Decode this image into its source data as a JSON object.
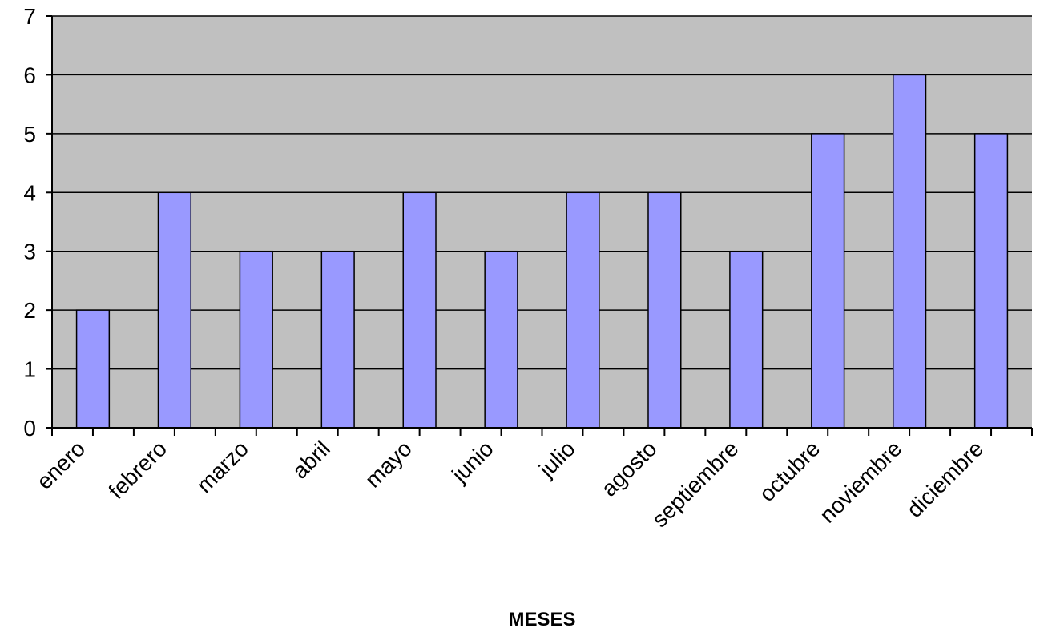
{
  "chart_data": {
    "type": "bar",
    "categories": [
      "enero",
      "febrero",
      "marzo",
      "abril",
      "mayo",
      "junio",
      "julio",
      "agosto",
      "septiembre",
      "octubre",
      "noviembre",
      "diciembre"
    ],
    "values": [
      2,
      4,
      3,
      3,
      4,
      3,
      4,
      4,
      3,
      5,
      6,
      5
    ],
    "title": "",
    "xlabel": "MESES",
    "ylabel": "",
    "ylim": [
      0,
      7
    ],
    "yticks": [
      "0",
      "1",
      "2",
      "3",
      "4",
      "5",
      "6",
      "7"
    ],
    "grid": true,
    "legend": "none",
    "colors": {
      "bar": "#9999ff",
      "plot_background": "#c0c0c0",
      "gridline": "#000000"
    }
  }
}
